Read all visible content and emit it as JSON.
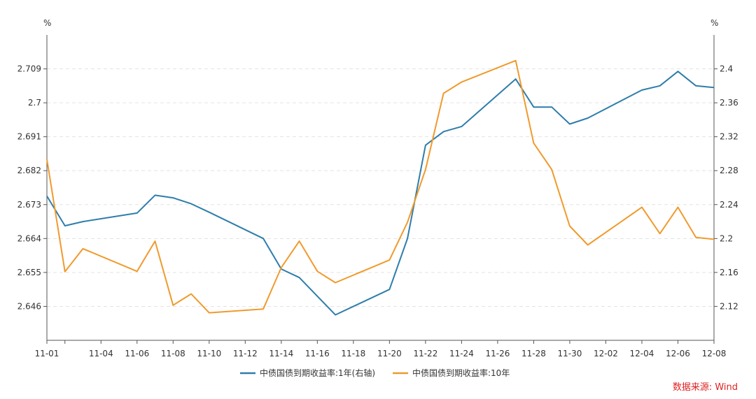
{
  "chart_data": {
    "type": "line",
    "x_dates": [
      "11-01",
      "11-02",
      "11-03",
      "11-06",
      "11-07",
      "11-08",
      "11-09",
      "11-10",
      "11-13",
      "11-14",
      "11-15",
      "11-16",
      "11-17",
      "11-20",
      "11-21",
      "11-22",
      "11-23",
      "11-24",
      "11-27",
      "11-28",
      "11-29",
      "11-30",
      "12-01",
      "12-04",
      "12-05",
      "12-06",
      "12-07",
      "12-08"
    ],
    "x_tick_labels": [
      "11-01",
      "11-04",
      "11-06",
      "11-08",
      "11-10",
      "11-12",
      "11-14",
      "11-16",
      "11-18",
      "11-20",
      "11-22",
      "11-24",
      "11-26",
      "11-28",
      "11-30",
      "12-02",
      "12-04",
      "12-06",
      "12-08"
    ],
    "left_axis": {
      "unit": "%",
      "ylim": [
        2.637,
        2.718
      ],
      "ticks": [
        "2.646",
        "2.655",
        "2.664",
        "2.673",
        "2.682",
        "2.691",
        "2.7",
        "2.709"
      ]
    },
    "right_axis": {
      "unit": "%",
      "ylim": [
        2.08,
        2.44
      ],
      "ticks": [
        "2.12",
        "2.16",
        "2.2",
        "2.24",
        "2.28",
        "2.32",
        "2.36",
        "2.4"
      ]
    },
    "grid": true,
    "legend_position": "bottom-center",
    "series": [
      {
        "name": "中债国债到期收益率:1年(右轴)",
        "axis": "right",
        "color": "#2e7dab",
        "values": [
          2.25,
          2.215,
          2.22,
          2.23,
          2.251,
          2.248,
          2.241,
          2.231,
          2.2,
          2.164,
          2.154,
          2.132,
          2.11,
          2.14,
          2.2,
          2.31,
          2.326,
          2.332,
          2.388,
          2.355,
          2.355,
          2.335,
          2.342,
          2.375,
          2.38,
          2.397,
          2.38,
          2.378
        ]
      },
      {
        "name": "中债国债到期收益率:10年",
        "axis": "left",
        "color": "#f09a2c",
        "values": [
          2.685,
          2.6552,
          2.6613,
          2.6553,
          2.6633,
          2.6463,
          2.6493,
          2.6443,
          2.6453,
          2.6563,
          2.6633,
          2.6553,
          2.6523,
          2.6583,
          2.6683,
          2.6823,
          2.7025,
          2.7055,
          2.7112,
          2.6893,
          2.6823,
          2.6673,
          2.6623,
          2.6723,
          2.6653,
          2.6723,
          2.6643,
          2.6638
        ]
      }
    ]
  },
  "source_label": "数据来源: Wind"
}
